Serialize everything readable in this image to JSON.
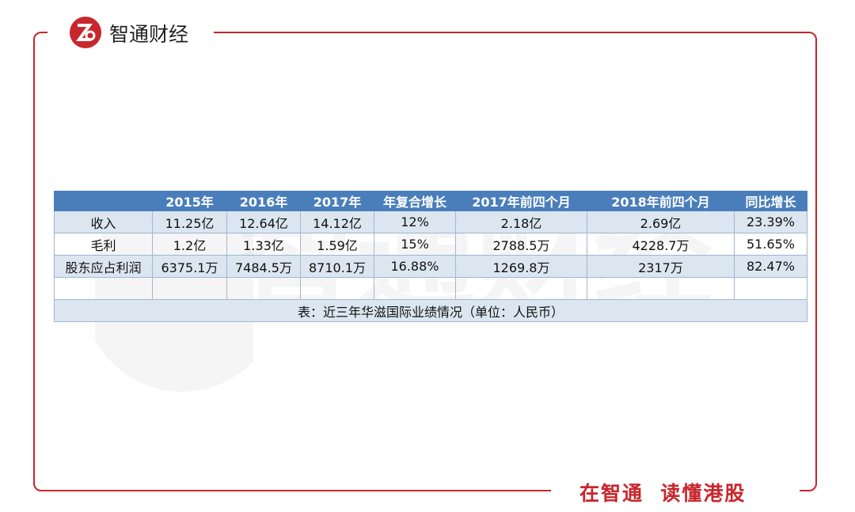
{
  "header": {
    "brand": "智通财经"
  },
  "watermark": "智通财经",
  "table": {
    "columns": [
      "2015年",
      "2016年",
      "2017年",
      "年复合增长",
      "2017年前四个月",
      "2018年前四个月",
      "同比增长"
    ],
    "rows": [
      {
        "label": "收入",
        "cells": [
          "11.25亿",
          "12.64亿",
          "14.12亿",
          "12%",
          "2.18亿",
          "2.69亿",
          "23.39%"
        ]
      },
      {
        "label": "毛利",
        "cells": [
          "1.2亿",
          "1.33亿",
          "1.59亿",
          "15%",
          "2788.5万",
          "4228.7万",
          "51.65%"
        ]
      },
      {
        "label": "股东应占利润",
        "cells": [
          "6375.1万",
          "7484.5万",
          "8710.1万",
          "16.88%",
          "1269.8万",
          "2317万",
          "82.47%"
        ]
      }
    ],
    "caption": "表：近三年华滋国际业绩情况（单位：人民币）"
  },
  "footer": {
    "slogan": "在智通  读懂港股"
  }
}
